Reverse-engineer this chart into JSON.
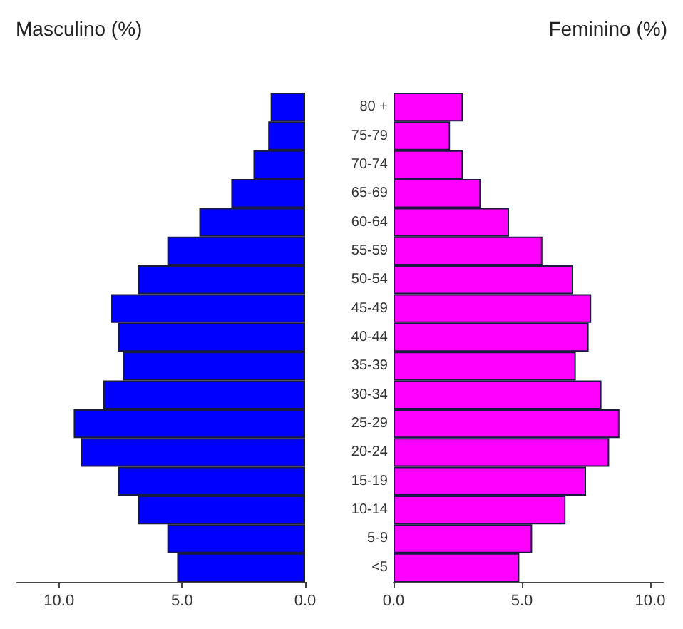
{
  "chart_data": [
    {
      "type": "bar",
      "orientation": "horizontal",
      "title": "Masculino (%)",
      "tick_labels": "x",
      "categories": [
        "80 +",
        "75-79",
        "70-74",
        "65-69",
        "60-64",
        "55-59",
        "50-54",
        "45-49",
        "40-44",
        "35-39",
        "30-34",
        "25-29",
        "20-24",
        "15-19",
        "10-14",
        "5-9",
        "<5"
      ],
      "values": [
        1.4,
        1.5,
        2.1,
        3.0,
        4.3,
        5.6,
        6.8,
        7.9,
        7.6,
        7.4,
        8.2,
        9.4,
        9.1,
        7.6,
        6.8,
        5.6,
        5.2
      ],
      "color": "#0000ff",
      "xlim": [
        11.7,
        0
      ],
      "xticks": [
        {
          "value": 10,
          "label": "10.0"
        },
        {
          "value": 5,
          "label": "5.0"
        },
        {
          "value": 0,
          "label": "0.0"
        }
      ]
    },
    {
      "type": "bar",
      "orientation": "horizontal",
      "title": "Feminino (%)",
      "categories": [
        "80 +",
        "75-79",
        "70-74",
        "65-69",
        "60-64",
        "55-59",
        "50-54",
        "45-49",
        "40-44",
        "35-39",
        "30-34",
        "25-29",
        "20-24",
        "15-19",
        "10-14",
        "5-9",
        "<5"
      ],
      "values": [
        2.7,
        2.2,
        2.7,
        3.4,
        4.5,
        5.8,
        7.0,
        7.7,
        7.6,
        7.1,
        8.1,
        8.8,
        8.4,
        7.5,
        6.7,
        5.4,
        4.9
      ],
      "color": "#ff00ff",
      "xlim": [
        0,
        10.5
      ],
      "xticks": [
        {
          "value": 0,
          "label": "0.0"
        },
        {
          "value": 5,
          "label": "5.0"
        },
        {
          "value": 10,
          "label": "10.0"
        }
      ]
    }
  ]
}
